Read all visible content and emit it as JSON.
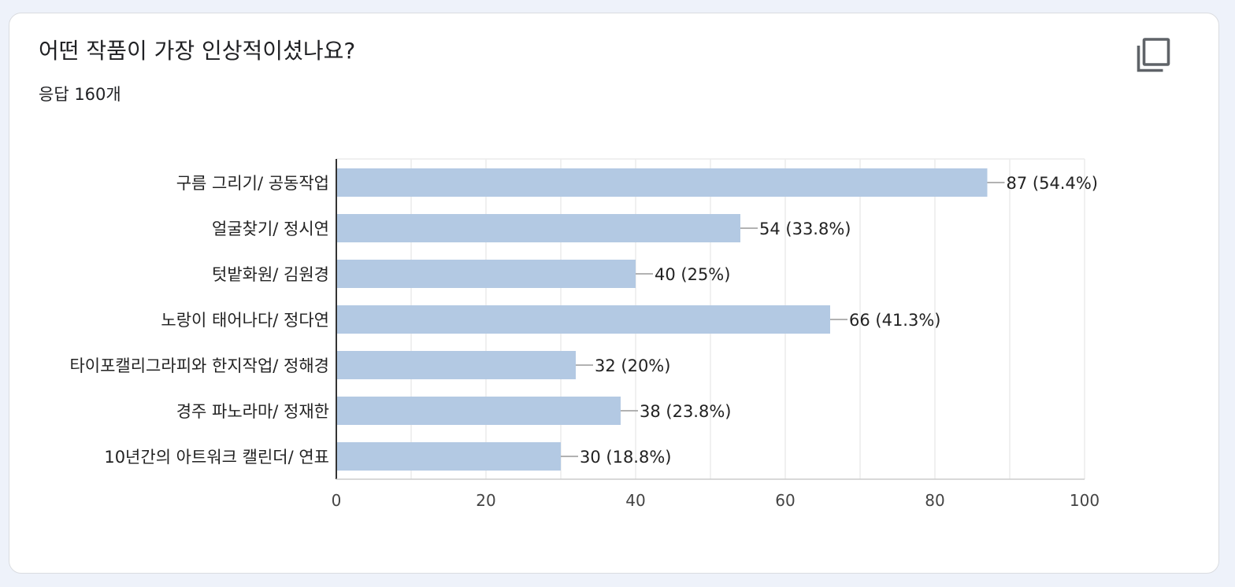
{
  "header": {
    "question": "어떤 작품이 가장 인상적이셨나요?",
    "response_count": "응답 160개"
  },
  "toolbar": {
    "copy_icon": "copy-icon"
  },
  "colors": {
    "bar": "#b3c9e3",
    "grid": "#ebebeb",
    "axis": "#333333",
    "leader": "#999999",
    "background": "#eef2fa",
    "card": "#ffffff"
  },
  "chart_data": {
    "type": "bar",
    "orientation": "horizontal",
    "categories": [
      "구름 그리기/ 공동작업",
      "얼굴찾기/ 정시연",
      "텃밭화원/ 김원경",
      "노랑이 태어나다/ 정다연",
      "타이포캘리그라피와 한지작업/ 정해경",
      "경주 파노라마/ 정재한",
      "10년간의 아트워크 캘린더/ 연표"
    ],
    "values": [
      87,
      54,
      40,
      66,
      32,
      38,
      30
    ],
    "data_labels": [
      "87 (54.4%)",
      "54 (33.8%)",
      "40 (25%)",
      "66 (41.3%)",
      "32 (20%)",
      "38 (23.8%)",
      "30 (18.8%)"
    ],
    "xlim": [
      0,
      100
    ],
    "x_ticks": [
      0,
      20,
      40,
      60,
      80,
      100
    ],
    "x_tick_labels": [
      "0",
      "20",
      "40",
      "60",
      "80",
      "100"
    ],
    "grid": true,
    "minor_grid": true
  }
}
